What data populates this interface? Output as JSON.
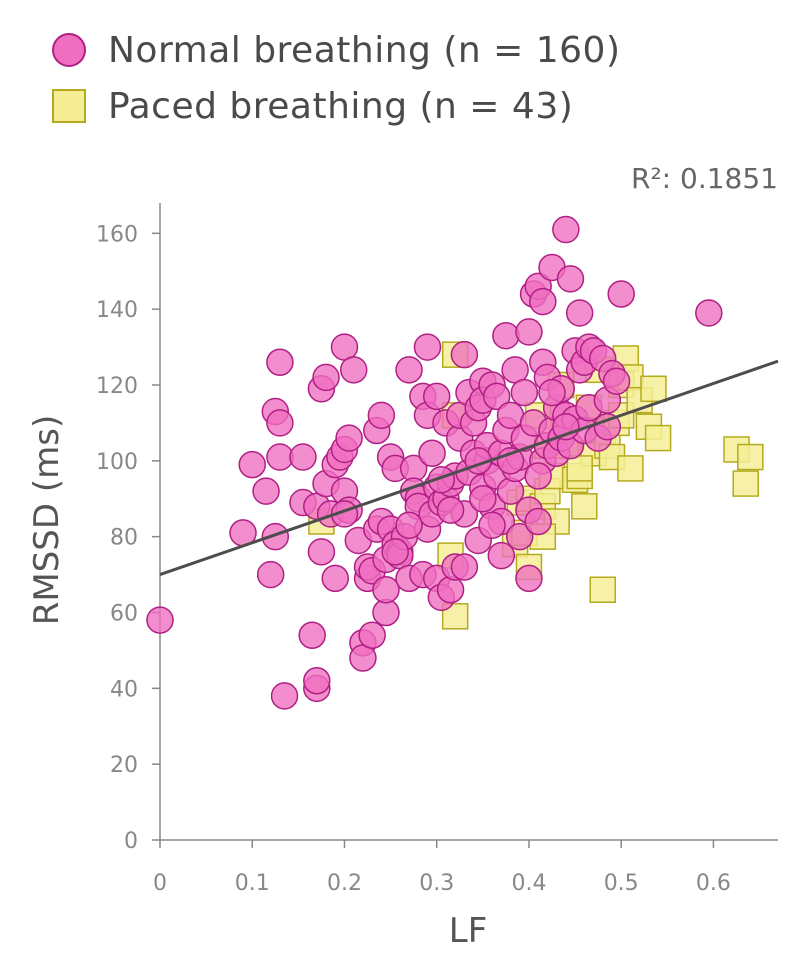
{
  "chart_data": {
    "type": "scatter",
    "xlabel": "LF",
    "ylabel": "RMSSD (ms)",
    "xlim": [
      0,
      0.67
    ],
    "ylim": [
      0,
      168
    ],
    "x_ticks": [
      "0",
      "0.1",
      "0.2",
      "0.3",
      "0.4",
      "0.5",
      "0.6"
    ],
    "y_ticks": [
      "0",
      "20",
      "40",
      "60",
      "80",
      "100",
      "120",
      "140",
      "160"
    ],
    "annotation": "R²: 0.1851",
    "regression": {
      "intercept": 70,
      "slope": 84
    },
    "legend_placement": "top-left",
    "series": [
      {
        "name": "Normal breathing (n = 160)",
        "marker": "circle",
        "fill": "#f06ec0",
        "stroke": "#b01f84",
        "points": [
          [
            0.0,
            58
          ],
          [
            0.09,
            81
          ],
          [
            0.1,
            99
          ],
          [
            0.115,
            92
          ],
          [
            0.12,
            70
          ],
          [
            0.125,
            80
          ],
          [
            0.125,
            113
          ],
          [
            0.13,
            101
          ],
          [
            0.13,
            110
          ],
          [
            0.13,
            126
          ],
          [
            0.135,
            38
          ],
          [
            0.155,
            101
          ],
          [
            0.155,
            89
          ],
          [
            0.165,
            54
          ],
          [
            0.17,
            40
          ],
          [
            0.17,
            42
          ],
          [
            0.17,
            88
          ],
          [
            0.175,
            76
          ],
          [
            0.175,
            119
          ],
          [
            0.18,
            122
          ],
          [
            0.18,
            94
          ],
          [
            0.185,
            86
          ],
          [
            0.19,
            69
          ],
          [
            0.19,
            99
          ],
          [
            0.195,
            101
          ],
          [
            0.2,
            103
          ],
          [
            0.2,
            92
          ],
          [
            0.2,
            130
          ],
          [
            0.205,
            106
          ],
          [
            0.205,
            87
          ],
          [
            0.21,
            124
          ],
          [
            0.215,
            79
          ],
          [
            0.22,
            52
          ],
          [
            0.22,
            48
          ],
          [
            0.225,
            69
          ],
          [
            0.225,
            72
          ],
          [
            0.23,
            54
          ],
          [
            0.23,
            71
          ],
          [
            0.235,
            82
          ],
          [
            0.235,
            108
          ],
          [
            0.24,
            112
          ],
          [
            0.24,
            84
          ],
          [
            0.245,
            74
          ],
          [
            0.245,
            60
          ],
          [
            0.245,
            66
          ],
          [
            0.25,
            82
          ],
          [
            0.25,
            101
          ],
          [
            0.255,
            98
          ],
          [
            0.255,
            78
          ],
          [
            0.26,
            76
          ],
          [
            0.26,
            75
          ],
          [
            0.265,
            80
          ],
          [
            0.27,
            69
          ],
          [
            0.27,
            124
          ],
          [
            0.275,
            98
          ],
          [
            0.275,
            92
          ],
          [
            0.28,
            90
          ],
          [
            0.28,
            88
          ],
          [
            0.285,
            70
          ],
          [
            0.285,
            117
          ],
          [
            0.29,
            112
          ],
          [
            0.29,
            130
          ],
          [
            0.29,
            82
          ],
          [
            0.295,
            86
          ],
          [
            0.295,
            102
          ],
          [
            0.3,
            69
          ],
          [
            0.3,
            93
          ],
          [
            0.3,
            117
          ],
          [
            0.305,
            64
          ],
          [
            0.305,
            89
          ],
          [
            0.31,
            110
          ],
          [
            0.31,
            90
          ],
          [
            0.315,
            66
          ],
          [
            0.315,
            94
          ],
          [
            0.32,
            72
          ],
          [
            0.32,
            96
          ],
          [
            0.325,
            106
          ],
          [
            0.325,
            112
          ],
          [
            0.33,
            86
          ],
          [
            0.33,
            128
          ],
          [
            0.335,
            97
          ],
          [
            0.335,
            118
          ],
          [
            0.34,
            102
          ],
          [
            0.34,
            110
          ],
          [
            0.345,
            114
          ],
          [
            0.345,
            79
          ],
          [
            0.35,
            121
          ],
          [
            0.35,
            116
          ],
          [
            0.35,
            93
          ],
          [
            0.355,
            100
          ],
          [
            0.355,
            104
          ],
          [
            0.36,
            120
          ],
          [
            0.36,
            88
          ],
          [
            0.365,
            117
          ],
          [
            0.365,
            96
          ],
          [
            0.37,
            102
          ],
          [
            0.37,
            84
          ],
          [
            0.37,
            75
          ],
          [
            0.375,
            108
          ],
          [
            0.375,
            133
          ],
          [
            0.38,
            112
          ],
          [
            0.38,
            92
          ],
          [
            0.385,
            124
          ],
          [
            0.385,
            98
          ],
          [
            0.39,
            101
          ],
          [
            0.39,
            80
          ],
          [
            0.395,
            118
          ],
          [
            0.395,
            106
          ],
          [
            0.4,
            87
          ],
          [
            0.4,
            69
          ],
          [
            0.4,
            134
          ],
          [
            0.405,
            110
          ],
          [
            0.405,
            144
          ],
          [
            0.41,
            146
          ],
          [
            0.41,
            84
          ],
          [
            0.415,
            142
          ],
          [
            0.415,
            126
          ],
          [
            0.415,
            100
          ],
          [
            0.42,
            122
          ],
          [
            0.42,
            104
          ],
          [
            0.425,
            151
          ],
          [
            0.425,
            108
          ],
          [
            0.43,
            114
          ],
          [
            0.43,
            102
          ],
          [
            0.435,
            119
          ],
          [
            0.435,
            106
          ],
          [
            0.44,
            161
          ],
          [
            0.44,
            112
          ],
          [
            0.445,
            148
          ],
          [
            0.445,
            104
          ],
          [
            0.45,
            129
          ],
          [
            0.45,
            111
          ],
          [
            0.455,
            139
          ],
          [
            0.455,
            124
          ],
          [
            0.46,
            126
          ],
          [
            0.46,
            108
          ],
          [
            0.465,
            130
          ],
          [
            0.465,
            114
          ],
          [
            0.47,
            129
          ],
          [
            0.475,
            106
          ],
          [
            0.48,
            127
          ],
          [
            0.485,
            116
          ],
          [
            0.485,
            109
          ],
          [
            0.49,
            123
          ],
          [
            0.495,
            121
          ],
          [
            0.5,
            144
          ],
          [
            0.595,
            139
          ],
          [
            0.27,
            83
          ],
          [
            0.33,
            72
          ],
          [
            0.36,
            83
          ],
          [
            0.2,
            86
          ],
          [
            0.255,
            76
          ],
          [
            0.305,
            95
          ],
          [
            0.345,
            100
          ],
          [
            0.41,
            96
          ],
          [
            0.425,
            118
          ],
          [
            0.38,
            100
          ],
          [
            0.315,
            87
          ],
          [
            0.35,
            90
          ],
          [
            0.44,
            109
          ]
        ]
      },
      {
        "name": "Paced breathing (n = 43)",
        "marker": "square",
        "fill": "#f5ee96",
        "stroke": "#b5aa1e",
        "points": [
          [
            0.175,
            84
          ],
          [
            0.32,
            128
          ],
          [
            0.32,
            112
          ],
          [
            0.32,
            59
          ],
          [
            0.315,
            75
          ],
          [
            0.385,
            78
          ],
          [
            0.39,
            89
          ],
          [
            0.395,
            81
          ],
          [
            0.4,
            72
          ],
          [
            0.4,
            90
          ],
          [
            0.41,
            112
          ],
          [
            0.415,
            88
          ],
          [
            0.42,
            104
          ],
          [
            0.42,
            92
          ],
          [
            0.425,
            96
          ],
          [
            0.43,
            84
          ],
          [
            0.435,
            120
          ],
          [
            0.44,
            104
          ],
          [
            0.45,
            95
          ],
          [
            0.455,
            96
          ],
          [
            0.46,
            88
          ],
          [
            0.465,
            114
          ],
          [
            0.47,
            102
          ],
          [
            0.475,
            124
          ],
          [
            0.48,
            108
          ],
          [
            0.48,
            66
          ],
          [
            0.485,
            104
          ],
          [
            0.49,
            101
          ],
          [
            0.495,
            110
          ],
          [
            0.5,
            112
          ],
          [
            0.5,
            120
          ],
          [
            0.505,
            127
          ],
          [
            0.51,
            122
          ],
          [
            0.51,
            98
          ],
          [
            0.52,
            116
          ],
          [
            0.53,
            109
          ],
          [
            0.535,
            119
          ],
          [
            0.54,
            106
          ],
          [
            0.625,
            103
          ],
          [
            0.64,
            101
          ],
          [
            0.635,
            94
          ],
          [
            0.415,
            80
          ],
          [
            0.455,
            98
          ]
        ]
      }
    ]
  }
}
